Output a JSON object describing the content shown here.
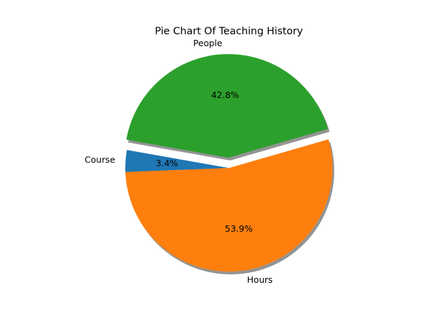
{
  "chart_data": {
    "type": "pie",
    "title": "Pie Chart Of Teaching History",
    "slices": [
      {
        "label": "Course",
        "value": 3.4,
        "pct_label": "3.4%",
        "color": "#1f77b4",
        "explode": 0
      },
      {
        "label": "Hours",
        "value": 53.9,
        "pct_label": "53.9%",
        "color": "#ff7f0e",
        "explode": 0
      },
      {
        "label": "People",
        "value": 42.8,
        "pct_label": "42.8%",
        "color": "#2ca02c",
        "explode": 0.1
      }
    ],
    "start_angle_deg": 170,
    "counterclockwise": true,
    "shadow": true,
    "legend": "none"
  }
}
